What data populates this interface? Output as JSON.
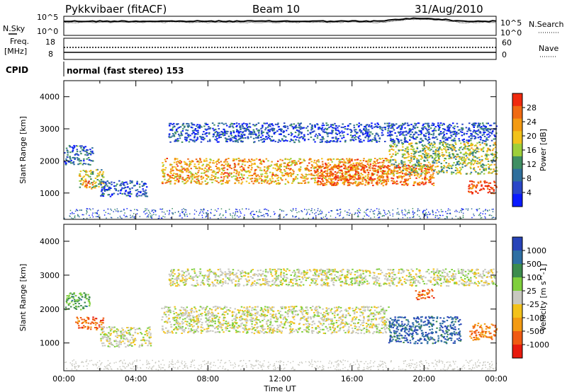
{
  "header": {
    "radar": "Pykkvibaer (fitACF)",
    "beam": "Beam 10",
    "date": "31/Aug/2010"
  },
  "strip": {
    "nsky_label": "N.Sky",
    "nsearch_label": "N.Search",
    "noise_ticks": [
      "10^5",
      "10^0"
    ],
    "freq_label_lines": [
      "Freq.",
      "[MHz]"
    ],
    "freq_ticks": [
      "18",
      "8"
    ],
    "nave_label": "Nave",
    "nave_ticks": [
      "60",
      "0"
    ],
    "cpid_label": "CPID",
    "cpid_value": "normal (fast stereo) 153"
  },
  "chart_data": [
    {
      "type": "heatmap",
      "quantity": "Power",
      "ylabel": "Slant Range [km]",
      "xlim": [
        0,
        24
      ],
      "ylim": [
        180,
        4500
      ],
      "yticks": [
        "1000",
        "2000",
        "3000",
        "4000"
      ],
      "colorbar_label": "Power [dB]",
      "colorbar_ticks": [
        "4",
        "8",
        "12",
        "16",
        "20",
        "24",
        "28"
      ],
      "colorscale": [
        "#0a1aff",
        "#2a46c8",
        "#2f6f9c",
        "#3f8f63",
        "#9ecf3a",
        "#f2c21b",
        "#f39a12",
        "#f06a12",
        "#f02a0e"
      ],
      "regions": [
        {
          "t0": 0.0,
          "t1": 1.6,
          "r0": 1900,
          "r1": 2500,
          "level": 0.25
        },
        {
          "t0": 0.8,
          "t1": 2.2,
          "r0": 1150,
          "r1": 1750,
          "level": 0.55
        },
        {
          "t0": 1.1,
          "t1": 1.6,
          "r0": 1200,
          "r1": 1400,
          "level": 0.9
        },
        {
          "t0": 2.0,
          "t1": 4.6,
          "r0": 900,
          "r1": 1400,
          "level": 0.2
        },
        {
          "t0": 5.4,
          "t1": 18.0,
          "r0": 1300,
          "r1": 2100,
          "level": 0.7
        },
        {
          "t0": 14.0,
          "t1": 20.5,
          "r0": 1250,
          "r1": 1900,
          "level": 0.85
        },
        {
          "t0": 18.0,
          "t1": 24.0,
          "r0": 1600,
          "r1": 2600,
          "level": 0.5
        },
        {
          "t0": 22.4,
          "t1": 24.0,
          "r0": 1000,
          "r1": 1400,
          "level": 0.95
        },
        {
          "t0": 5.8,
          "t1": 24.0,
          "r0": 2600,
          "r1": 3200,
          "level": 0.18
        }
      ]
    },
    {
      "type": "heatmap",
      "quantity": "Velocity",
      "xlabel": "Time UT",
      "ylabel": "Slant Range [km]",
      "xlim": [
        0,
        24
      ],
      "ylim": [
        180,
        4500
      ],
      "xticks": [
        "00:00",
        "04:00",
        "08:00",
        "12:00",
        "16:00",
        "20:00",
        "00:00"
      ],
      "yticks": [
        "1000",
        "2000",
        "3000",
        "4000"
      ],
      "colorbar_label": "Velocity [m s^-1]",
      "colorbar_ticks": [
        "1000",
        "500",
        "100",
        "25",
        "-25",
        "-100",
        "-500",
        "-1000"
      ],
      "colorscale": [
        "#2743b8",
        "#2e6fa3",
        "#3c8c4d",
        "#7fcf3c",
        "#c8c8c0",
        "#f3c21b",
        "#f39a12",
        "#f05a12",
        "#e81a0d"
      ],
      "regions": [
        {
          "t0": 0.0,
          "t1": 1.4,
          "r0": 2000,
          "r1": 2500,
          "vel": 0.4
        },
        {
          "t0": 0.6,
          "t1": 2.2,
          "r0": 1400,
          "r1": 1800,
          "vel": -0.7
        },
        {
          "t0": 2.0,
          "t1": 4.8,
          "r0": 900,
          "r1": 1500,
          "vel": 0.0
        },
        {
          "t0": 5.4,
          "t1": 18.0,
          "r0": 1300,
          "r1": 2100,
          "vel": 0.0
        },
        {
          "t0": 18.0,
          "t1": 22.0,
          "r0": 1000,
          "r1": 1800,
          "vel": 0.8
        },
        {
          "t0": 22.5,
          "t1": 24.0,
          "r0": 1100,
          "r1": 1600,
          "vel": -0.6
        },
        {
          "t0": 19.5,
          "t1": 20.5,
          "r0": 2300,
          "r1": 2600,
          "vel": -0.7
        },
        {
          "t0": 5.8,
          "t1": 24.0,
          "r0": 2700,
          "r1": 3200,
          "vel": 0.0
        }
      ]
    }
  ]
}
